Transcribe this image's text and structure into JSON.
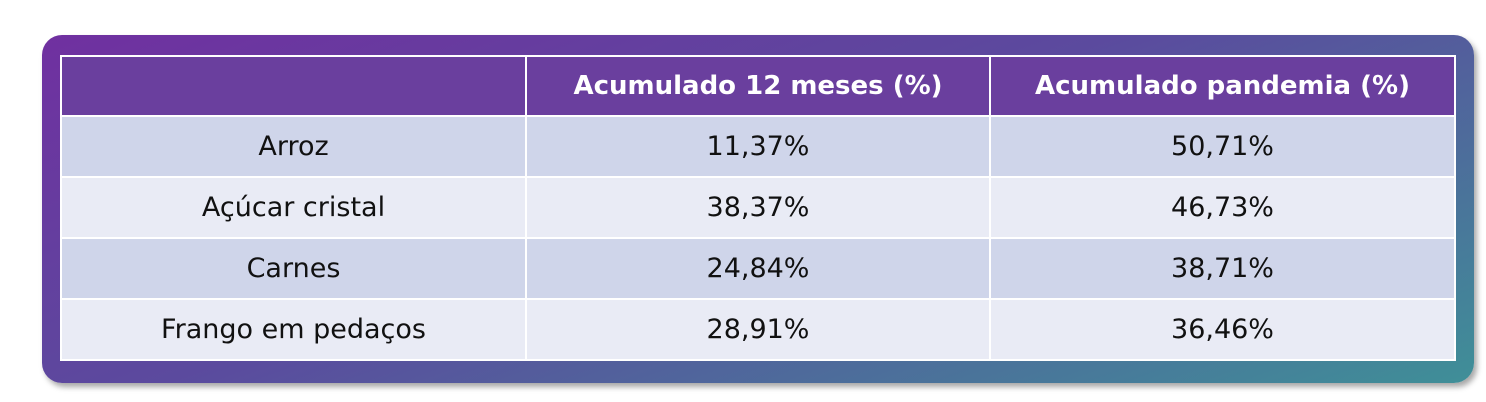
{
  "table": {
    "header": [
      "Acumulado 12 meses (%)",
      "Acumulado pandemia (%)"
    ],
    "rows": [
      [
        "Arroz",
        "11,37%",
        "50,71%"
      ],
      [
        "Açúcar cristal",
        "38,37%",
        "46,73%"
      ],
      [
        "Carnes",
        "24,84%",
        "38,71%"
      ],
      [
        "Frango em pedaços",
        "28,91%",
        "36,46%"
      ]
    ]
  }
}
